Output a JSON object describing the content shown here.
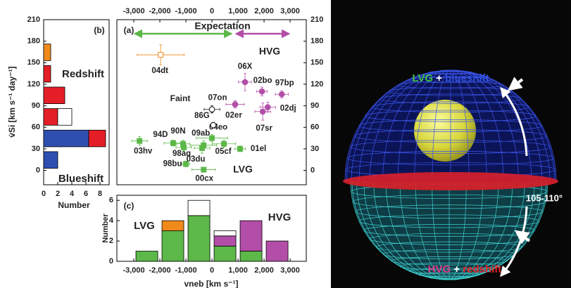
{
  "chart_data": [
    {
      "type": "histogram",
      "orientation": "horizontal",
      "panel_label": "(b)",
      "xlabel": "Number",
      "ylabel": "v̇Si [km s⁻¹ day⁻¹]",
      "bins": [
        0,
        30,
        60,
        90,
        120,
        150,
        180
      ],
      "series": [
        {
          "color": "#2f4fb0",
          "values": [
            2,
            6.4,
            0,
            0,
            0,
            0
          ]
        },
        {
          "color": "#e41e26",
          "values": [
            0,
            2.4,
            2,
            3,
            1,
            0
          ]
        },
        {
          "color": "#ffffff",
          "values": [
            0,
            0,
            2,
            0,
            0,
            0
          ]
        },
        {
          "color": "#f08a1a",
          "values": [
            0,
            0,
            0,
            0,
            0,
            1
          ]
        }
      ],
      "xlim": [
        0,
        9.3
      ],
      "xticks": [
        0,
        2,
        4,
        6,
        8
      ],
      "ylim": [
        -20,
        210
      ],
      "yticks": [
        0,
        30,
        60,
        90,
        120,
        150,
        180,
        210
      ],
      "annotations": [
        {
          "text": "Redshift",
          "color": "#e41e26"
        },
        {
          "text": "Blueshift",
          "color": "#2f4fb0"
        }
      ]
    },
    {
      "type": "scatter",
      "panel_label": "(a)",
      "xlim": [
        -3650,
        3620
      ],
      "xticks": [
        {
          "value": -3000,
          "label": "-3,000"
        },
        {
          "value": -2000,
          "label": "-2,000"
        },
        {
          "value": -1000,
          "label": "-1,000"
        },
        0,
        {
          "value": 1000,
          "label": "1,000"
        },
        {
          "value": 2000,
          "label": "2,000"
        },
        {
          "value": 3000,
          "label": "3,000"
        }
      ],
      "ylim": [
        -20,
        210
      ],
      "yticks": [
        0,
        30,
        60,
        90,
        120,
        150,
        180,
        210
      ],
      "series": [
        {
          "color": "#5cb848",
          "marker": "square",
          "filled": true,
          "labels": [
            "03hv",
            "94D",
            "90N",
            "98aq",
            "09ab",
            "03du",
            "04eo",
            "05cf",
            "01el",
            "98bu",
            "00cx"
          ],
          "x": [
            -2780,
            -1490,
            -1110,
            -1080,
            -320,
            -380,
            0,
            460,
            1080,
            -1000,
            -320
          ],
          "y": [
            41,
            38,
            37,
            32,
            35,
            31,
            45,
            37,
            30,
            9,
            1
          ],
          "xerr": [
            300,
            350,
            250,
            300,
            500,
            300,
            600,
            450,
            200,
            150,
            450
          ],
          "yerr": [
            6,
            4,
            5,
            5,
            6,
            7,
            5,
            5,
            4,
            4,
            3
          ]
        },
        {
          "color": "#b34ea8",
          "marker": "circle",
          "filled": true,
          "labels": [
            "06X",
            "02bo",
            "97bp",
            "02er",
            "02dj",
            "07sr"
          ],
          "x": [
            1270,
            1920,
            2680,
            890,
            2140,
            1950
          ],
          "y": [
            123,
            110,
            106,
            92,
            88,
            82
          ],
          "xerr": [
            250,
            200,
            250,
            350,
            300,
            300
          ],
          "yerr": [
            12,
            6,
            5,
            5,
            7,
            12
          ]
        },
        {
          "color": "#f08a1a",
          "marker": "square",
          "filled": false,
          "labels": [
            "04dt"
          ],
          "x": [
            -1970
          ],
          "y": [
            161
          ],
          "xerr": [
            900
          ],
          "yerr": [
            14
          ]
        },
        {
          "color": "#111111",
          "marker": "circle",
          "filled": false,
          "labels": [
            "07on",
            "86G"
          ],
          "x": [
            0,
            50
          ],
          "y": [
            85,
            63
          ],
          "xerr": [
            300,
            100
          ],
          "yerr": [
            5,
            4
          ]
        }
      ],
      "annotations": [
        {
          "text": "Expectation",
          "color": "#111111"
        },
        {
          "text": "HVG",
          "color": "#b34ea8"
        },
        {
          "text": "LVG",
          "color": "#5cb848"
        },
        {
          "text": "Faint",
          "color": "#111111"
        }
      ]
    },
    {
      "type": "histogram",
      "orientation": "vertical",
      "panel_label": "(c)",
      "xlabel": "vneb [km s⁻¹]",
      "ylabel": "Number",
      "bins": [
        -3000,
        -2000,
        -1000,
        0,
        1000,
        2000,
        3000
      ],
      "series": [
        {
          "color": "#5cb848",
          "values": [
            1,
            3,
            4.5,
            1.5,
            1,
            0
          ]
        },
        {
          "color": "#f08a1a",
          "values": [
            0,
            1,
            0,
            0,
            0,
            0
          ]
        },
        {
          "color": "#b34ea8",
          "values": [
            0,
            0,
            0,
            1,
            3,
            2
          ]
        },
        {
          "color": "#ffffff",
          "values": [
            0,
            0,
            1.5,
            0.5,
            0,
            0
          ]
        }
      ],
      "xlim": [
        -3650,
        3620
      ],
      "xticks": [
        {
          "value": -3000,
          "label": "-3,000"
        },
        {
          "value": -2000,
          "label": "-2,000"
        },
        {
          "value": -1000,
          "label": "-1,000"
        },
        0,
        {
          "value": 1000,
          "label": "1,000"
        },
        {
          "value": 2000,
          "label": "2,000"
        },
        {
          "value": 3000,
          "label": "3,000"
        }
      ],
      "ylim": [
        0,
        6.5
      ],
      "yticks": [
        0,
        2,
        4,
        6
      ],
      "annotations": [
        {
          "text": "LVG",
          "color": "#5cb848"
        },
        {
          "text": "HVG",
          "color": "#b34ea8"
        }
      ]
    }
  ],
  "illustration": {
    "top": [
      "LVG",
      "+",
      "blueshift"
    ],
    "bottom": [
      "HVG",
      "+",
      "redshift"
    ],
    "angle": "105-110°"
  }
}
